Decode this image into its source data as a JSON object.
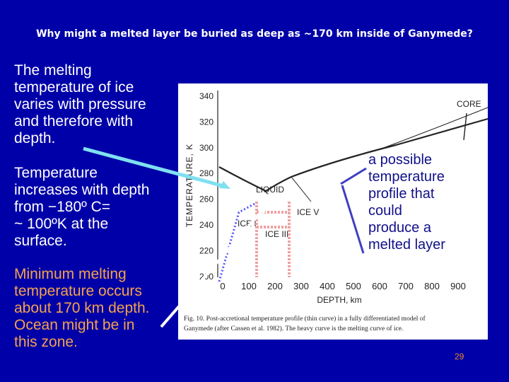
{
  "title": "Why might a melted layer be buried as deep as ~170 km inside of Ganymede?",
  "paragraphs": [
    [
      "The melting",
      "temperature of ice",
      "varies with pressure",
      "and therefore with",
      "depth."
    ],
    [
      "Temperature",
      "increases with depth",
      "from −180º C=",
      "~ 100ºK at the",
      "surface."
    ],
    [
      "Minimum melting",
      "temperature occurs",
      "about 170 km depth.",
      "Ocean might be in",
      "this zone."
    ]
  ],
  "figure": {
    "y_axis_label": "TEMPERATURE, K",
    "y_ticks": [
      "340",
      "320",
      "300",
      "280",
      "260",
      "240",
      "220",
      "200"
    ],
    "x_axis_label": "DEPTH, km",
    "x_ticks": [
      "0",
      "100",
      "200",
      "300",
      "400",
      "500",
      "600",
      "700",
      "800",
      "900"
    ],
    "region_labels": [
      "CORE",
      "LIQUID",
      "ICE V",
      "ICE I",
      "ICE III"
    ],
    "caption": [
      "Fig. 10. Post-accretional temperature profile (thin curve) in a fully differentiated model of",
      "Ganymede (after Cassen et al. 1982). The heavy curve is the melting curve of ice."
    ]
  },
  "annotation": [
    "a possible",
    "temperature",
    "profile that",
    "could",
    "produce a",
    "melted layer"
  ],
  "page_number": "29"
}
